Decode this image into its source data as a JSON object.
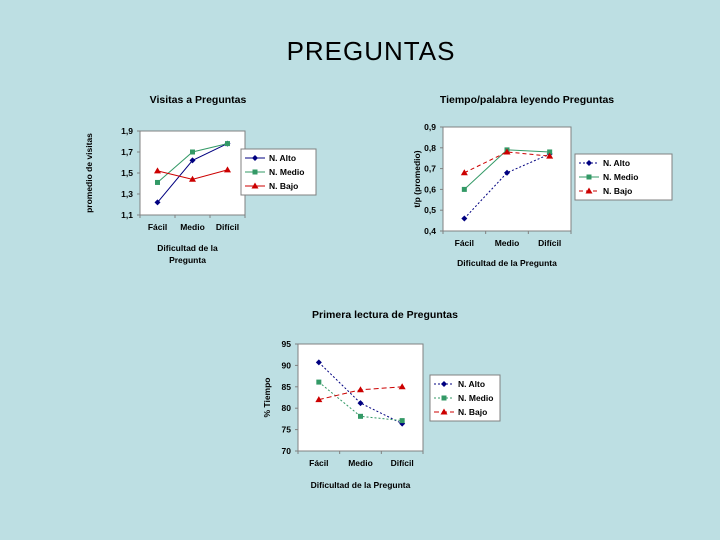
{
  "slide": {
    "title": "PREGUNTAS"
  },
  "chart_data": [
    {
      "id": "visitas",
      "type": "line",
      "title": "Visitas a Preguntas",
      "xlabel": "Dificultad de la Pregunta",
      "ylabel": "promedio de visitas",
      "categories": [
        "Fácil",
        "Medio",
        "Difícil"
      ],
      "ylim": [
        1.1,
        1.9
      ],
      "yticks": [
        "1,1",
        "1,3",
        "1,5",
        "1,7",
        "1,9"
      ],
      "grid": false,
      "legend": "right",
      "series": [
        {
          "name": "N. Alto",
          "values": [
            1.22,
            1.62,
            1.78
          ],
          "color": "#000080",
          "marker": "diamond",
          "dash": ""
        },
        {
          "name": "N. Medio",
          "values": [
            1.41,
            1.7,
            1.78
          ],
          "color": "#339966",
          "marker": "square",
          "dash": ""
        },
        {
          "name": "N. Bajo",
          "values": [
            1.52,
            1.44,
            1.53
          ],
          "color": "#cc0000",
          "marker": "triangle",
          "dash": ""
        }
      ]
    },
    {
      "id": "tiempo-palabra",
      "type": "line",
      "title": "Tiempo/palabra leyendo Preguntas",
      "xlabel": "Dificultad de la Pregunta",
      "ylabel": "t/p (promedio)",
      "categories": [
        "Fácil",
        "Medio",
        "Difícil"
      ],
      "ylim": [
        0.4,
        0.9
      ],
      "yticks": [
        "0,4",
        "0,5",
        "0,6",
        "0,7",
        "0,8",
        "0,9"
      ],
      "grid": false,
      "legend": "right",
      "series": [
        {
          "name": "N. Alto",
          "values": [
            0.46,
            0.68,
            0.77
          ],
          "color": "#000080",
          "marker": "diamond",
          "dash": "2,2"
        },
        {
          "name": "N. Medio",
          "values": [
            0.6,
            0.79,
            0.78
          ],
          "color": "#339966",
          "marker": "square",
          "dash": ""
        },
        {
          "name": "N. Bajo",
          "values": [
            0.68,
            0.78,
            0.76
          ],
          "color": "#cc0000",
          "marker": "triangle",
          "dash": "4,3"
        }
      ]
    },
    {
      "id": "primera-lectura",
      "type": "line",
      "title": "Primera lectura de Preguntas",
      "xlabel": "Dificultad de la Pregunta",
      "ylabel": "% Tiempo",
      "categories": [
        "Fácil",
        "Medio",
        "Difícil"
      ],
      "ylim": [
        70,
        95
      ],
      "yticks": [
        "70",
        "75",
        "80",
        "85",
        "90",
        "95"
      ],
      "grid": false,
      "legend": "right",
      "series": [
        {
          "name": "N. Alto",
          "values": [
            90.7,
            81.2,
            76.4
          ],
          "color": "#000080",
          "marker": "diamond",
          "dash": "2,2"
        },
        {
          "name": "N. Medio",
          "values": [
            86.1,
            78.1,
            77.1
          ],
          "color": "#339966",
          "marker": "square",
          "dash": "2,2"
        },
        {
          "name": "N. Bajo",
          "values": [
            82.0,
            84.3,
            85.0
          ],
          "color": "#cc0000",
          "marker": "triangle",
          "dash": "5,3"
        }
      ]
    }
  ]
}
